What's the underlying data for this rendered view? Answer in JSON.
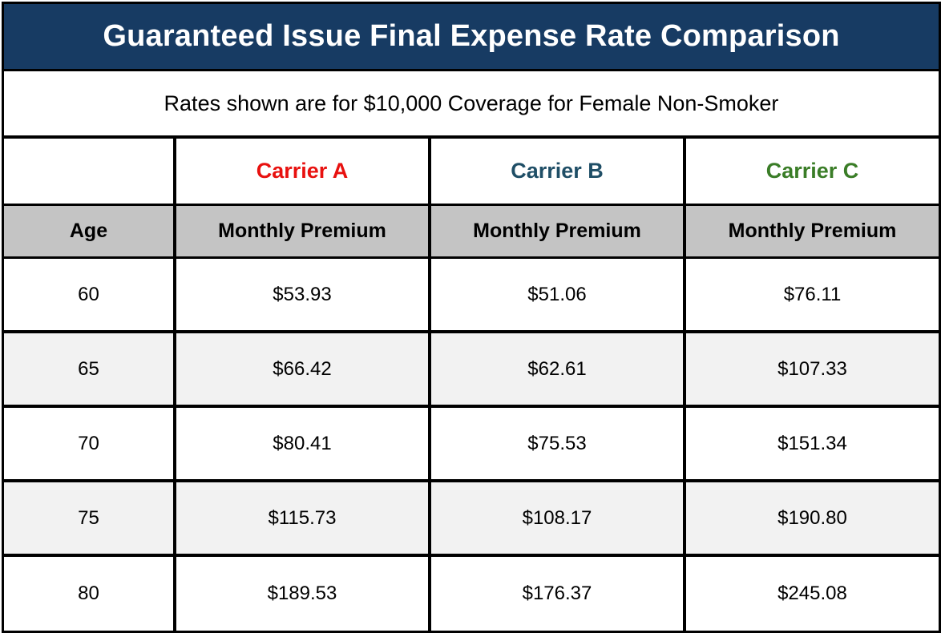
{
  "title": "Guaranteed Issue Final Expense Rate Comparison",
  "subtitle": "Rates shown are for $10,000 Coverage for Female Non-Smoker",
  "colors": {
    "title_background": "#173b63",
    "header_background": "#c4c4c4",
    "alt_row_background": "#f2f2f2",
    "carrier_a": "#e8110f",
    "carrier_b": "#1f4e66",
    "carrier_c": "#3a7d27"
  },
  "carriers": [
    "Carrier A",
    "Carrier B",
    "Carrier C"
  ],
  "header": {
    "age": "Age",
    "premium": [
      "Monthly Premium",
      "Monthly Premium",
      "Monthly Premium"
    ]
  },
  "rows": [
    {
      "age": "60",
      "values": [
        "$53.93",
        "$51.06",
        "$76.11"
      ]
    },
    {
      "age": "65",
      "values": [
        "$66.42",
        "$62.61",
        "$107.33"
      ]
    },
    {
      "age": "70",
      "values": [
        "$80.41",
        "$75.53",
        "$151.34"
      ]
    },
    {
      "age": "75",
      "values": [
        "$115.73",
        "$108.17",
        "$190.80"
      ]
    },
    {
      "age": "80",
      "values": [
        "$189.53",
        "$176.37",
        "$245.08"
      ]
    }
  ],
  "chart_data": {
    "type": "table",
    "title": "Guaranteed Issue Final Expense Rate Comparison",
    "subtitle": "Rates shown are for $10,000 Coverage for Female Non-Smoker",
    "columns": [
      "Age",
      "Carrier A",
      "Carrier B",
      "Carrier C"
    ],
    "x": [
      60,
      65,
      70,
      75,
      80
    ],
    "series": [
      {
        "name": "Carrier A",
        "values": [
          53.93,
          66.42,
          80.41,
          115.73,
          189.53
        ]
      },
      {
        "name": "Carrier B",
        "values": [
          51.06,
          62.61,
          75.53,
          108.17,
          176.37
        ]
      },
      {
        "name": "Carrier C",
        "values": [
          76.11,
          107.33,
          151.34,
          190.8,
          245.08
        ]
      }
    ]
  }
}
